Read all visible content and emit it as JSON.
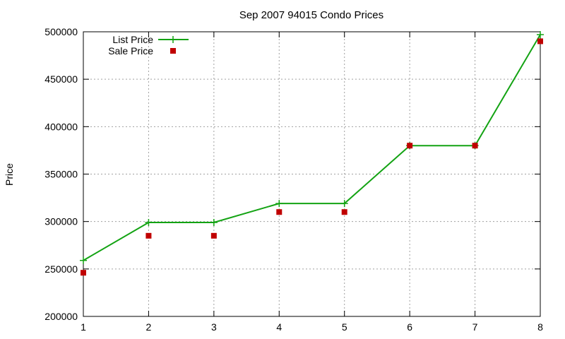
{
  "chart_data": {
    "type": "line",
    "title": "Sep 2007 94015 Condo Prices",
    "xlabel": "",
    "ylabel": "Price",
    "x": [
      1,
      2,
      3,
      4,
      5,
      6,
      7,
      8
    ],
    "xlim": [
      1,
      8
    ],
    "ylim": [
      200000,
      500000
    ],
    "xticks": [
      "1",
      "2",
      "3",
      "4",
      "5",
      "6",
      "7",
      "8"
    ],
    "yticks": [
      "200000",
      "250000",
      "300000",
      "350000",
      "400000",
      "450000",
      "500000"
    ],
    "grid": true,
    "legend_position": "top-left",
    "series": [
      {
        "name": "List Price",
        "style": "linespoints",
        "marker": "plus",
        "color": "#13a313",
        "values": [
          259000,
          299000,
          299000,
          319000,
          319000,
          380000,
          380000,
          497000
        ]
      },
      {
        "name": "Sale Price",
        "style": "points",
        "marker": "square",
        "color": "#c00000",
        "values": [
          246000,
          285000,
          285000,
          310000,
          310000,
          380000,
          380000,
          490000
        ]
      }
    ]
  }
}
